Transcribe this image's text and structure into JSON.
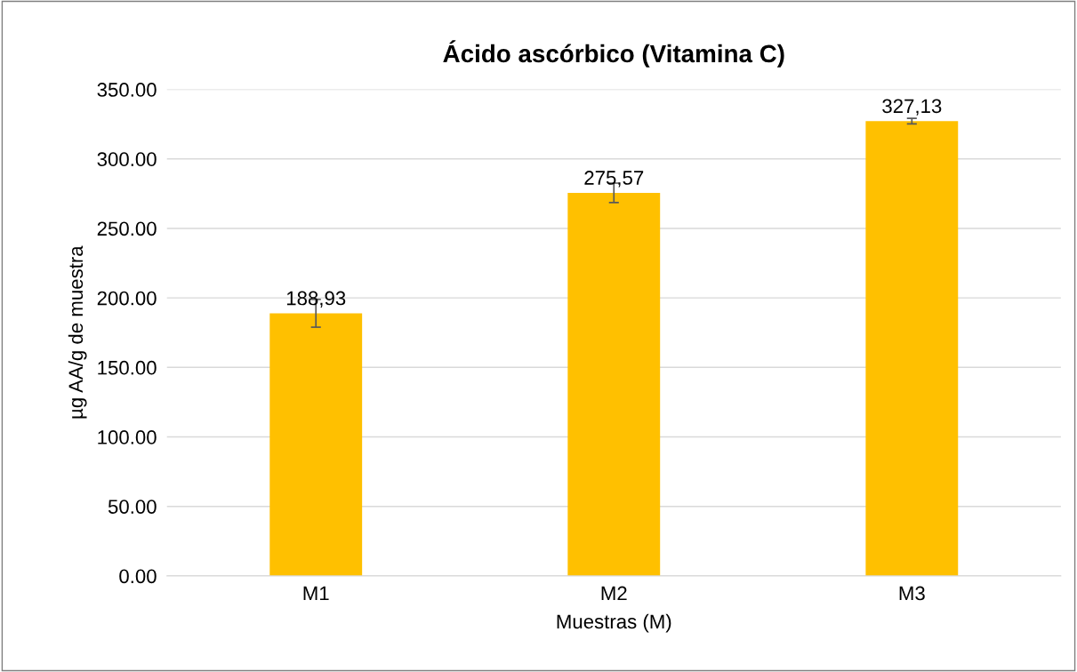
{
  "chart_data": {
    "type": "bar",
    "title": "Ácido ascórbico (Vitamina C)",
    "xlabel": "Muestras (M)",
    "ylabel": "µg AA/g de muestra",
    "categories": [
      "M1",
      "M2",
      "M3"
    ],
    "values": [
      188.93,
      275.57,
      327.13
    ],
    "errors": [
      10,
      7,
      2
    ],
    "value_labels": [
      "188,93",
      "275,57",
      "327,13"
    ],
    "color": "#ffc000",
    "ylim": [
      0,
      350
    ],
    "yticks": [
      {
        "value": 0,
        "label": "0.00"
      },
      {
        "value": 50,
        "label": "50.00"
      },
      {
        "value": 100,
        "label": "100.00"
      },
      {
        "value": 150,
        "label": "150.00"
      },
      {
        "value": 200,
        "label": "200.00"
      },
      {
        "value": 250,
        "label": "250.00"
      },
      {
        "value": 300,
        "label": "300.00"
      },
      {
        "value": 350,
        "label": "350.00"
      }
    ],
    "grid": "y",
    "legend": false
  }
}
